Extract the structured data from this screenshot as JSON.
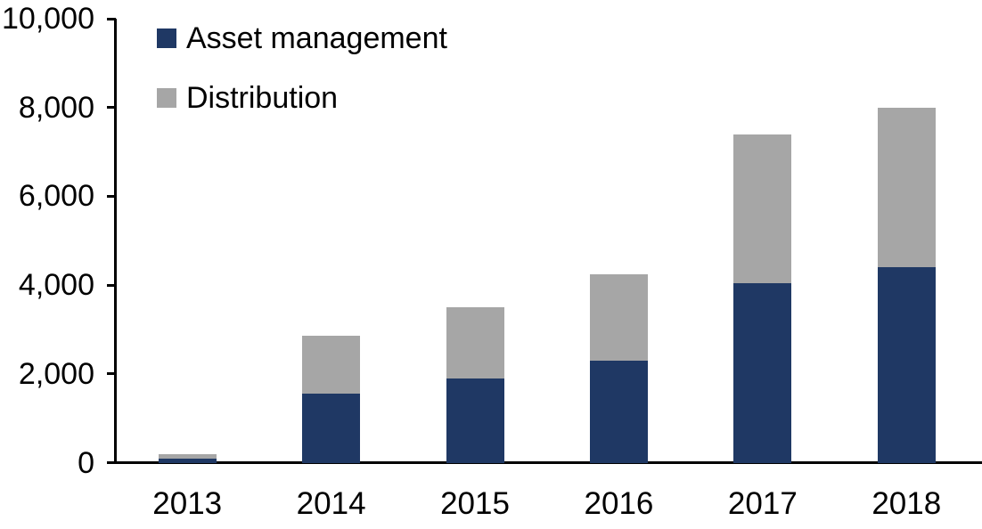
{
  "chart_data": {
    "type": "bar",
    "stacked": true,
    "categories": [
      "2013",
      "2014",
      "2015",
      "2016",
      "2017",
      "2018"
    ],
    "series": [
      {
        "name": "Asset management",
        "color": "#1f3864",
        "values": [
          100,
          1550,
          1900,
          2300,
          4050,
          4400
        ]
      },
      {
        "name": "Distribution",
        "color": "#a6a6a6",
        "values": [
          100,
          1300,
          1600,
          1950,
          3350,
          3600
        ]
      }
    ],
    "ylim": [
      0,
      10000
    ],
    "yticks": [
      {
        "value": 0,
        "label": "0"
      },
      {
        "value": 2000,
        "label": "2,000"
      },
      {
        "value": 4000,
        "label": "4,000"
      },
      {
        "value": 6000,
        "label": "6,000"
      },
      {
        "value": 8000,
        "label": "8,000"
      },
      {
        "value": 10000,
        "label": "10,000"
      }
    ],
    "legend_position": "top-left",
    "grid": false,
    "axis_color": "#000000",
    "text_color": "#000000",
    "background": "#ffffff"
  }
}
